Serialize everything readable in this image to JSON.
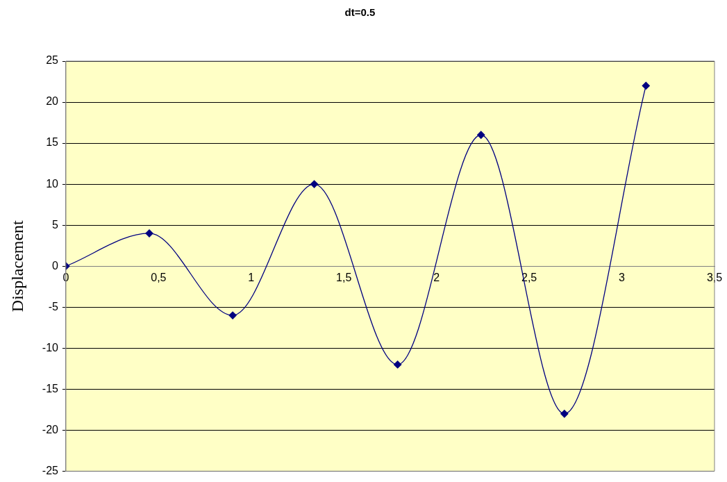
{
  "chart_data": {
    "type": "line",
    "title": "dt=0.5",
    "ylabel": "Displacement",
    "x": [
      0,
      0.45,
      0.9,
      1.34,
      1.79,
      2.24,
      2.69,
      3.13
    ],
    "series": [
      {
        "color": "#000080",
        "values": [
          0,
          4,
          -6,
          10,
          -12,
          16,
          -18,
          22
        ]
      }
    ],
    "xlim": [
      0,
      3.5
    ],
    "xticks": [
      0,
      {
        "value": 0.5,
        "label": "0,5"
      },
      1,
      {
        "value": 1.5,
        "label": "1,5"
      },
      2,
      {
        "value": 2.5,
        "label": "2,5"
      },
      3,
      {
        "value": 3.5,
        "label": "3,5"
      }
    ],
    "ylim": [
      -25,
      25
    ],
    "yticks": [
      -25,
      -20,
      -15,
      -10,
      -5,
      0,
      5,
      10,
      15,
      20,
      25
    ],
    "grid": "y",
    "marker": "diamond",
    "line_style": "solid"
  }
}
